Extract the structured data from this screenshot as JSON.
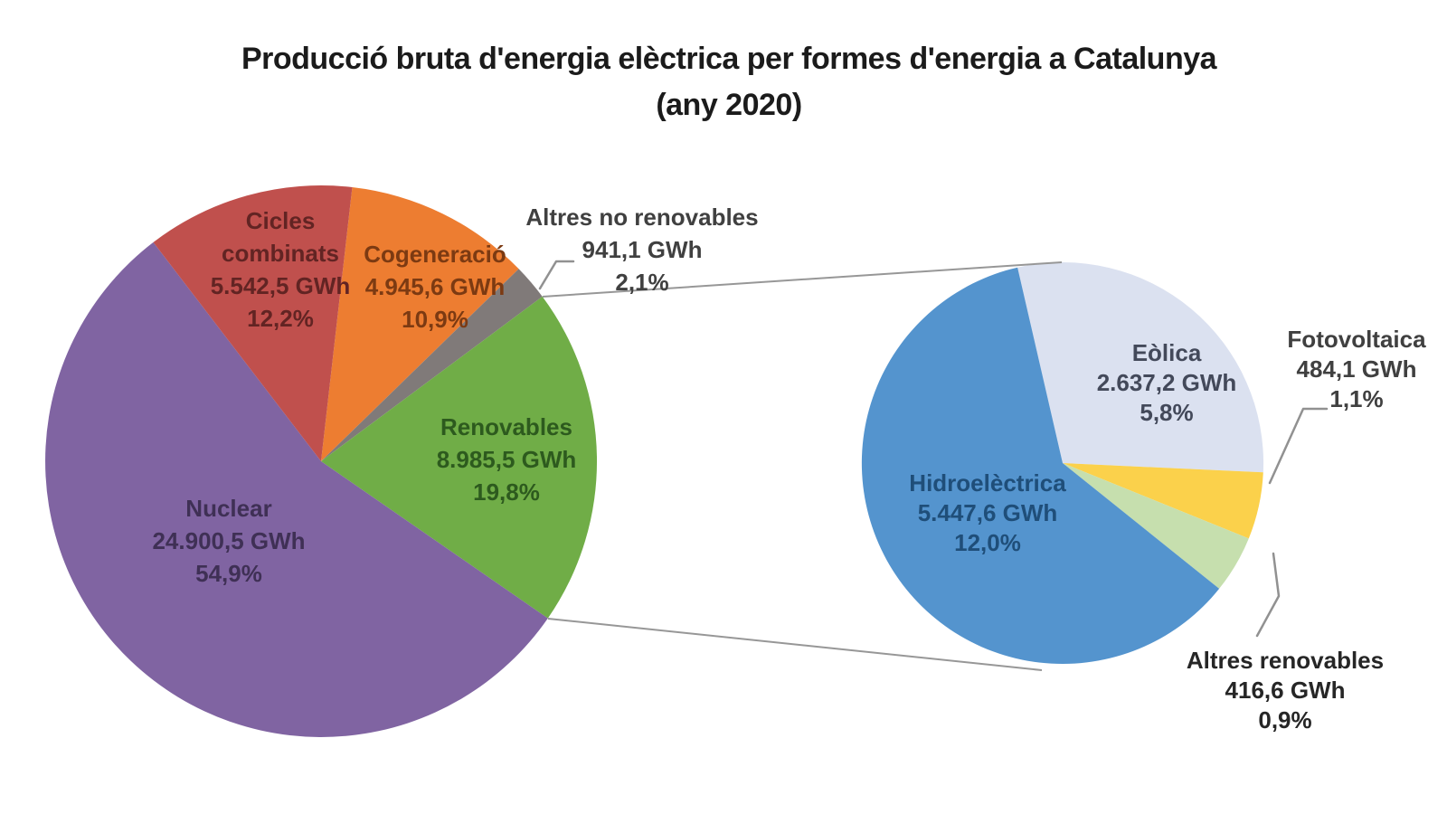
{
  "chart_data": {
    "type": "pie",
    "subtype": "pie-of-pie",
    "unit": "GWh",
    "title": "Producció bruta d'energia elèctrica per formes d'energia a Catalunya (any 2020)",
    "title_line1": "Producció bruta d'energia elèctrica per formes d'energia a Catalunya",
    "title_line2": "(any 2020)",
    "main_pie": {
      "slices": [
        {
          "id": "cogeneracio",
          "name": "Cogeneració",
          "gwh": 4945.6,
          "gwh_label": "4.945,6 GWh",
          "pct_label": "10,9%",
          "value": 10.9,
          "color": "#ED7D31",
          "label_color": "#7C3A12"
        },
        {
          "id": "altres-no-renovables",
          "name": "Altres no renovables",
          "gwh": 941.1,
          "gwh_label": "941,1 GWh",
          "pct_label": "2,1%",
          "value": 2.1,
          "color": "#807A79",
          "label_color": "#404040"
        },
        {
          "id": "renovables",
          "name": "Renovables",
          "gwh": 8985.5,
          "gwh_label": "8.985,5 GWh",
          "pct_label": "19,8%",
          "value": 19.8,
          "color": "#70AD47",
          "label_color": "#2D5A1E"
        },
        {
          "id": "nuclear",
          "name": "Nuclear",
          "gwh": 24900.5,
          "gwh_label": "24.900,5 GWh",
          "pct_label": "54,9%",
          "value": 54.9,
          "color": "#8064A2",
          "label_color": "#3F3055"
        },
        {
          "id": "cicles-combinats",
          "name": "Cicles combinats",
          "gwh": 5542.5,
          "gwh_label": "5.542,5 GWh",
          "pct_label": "12,2%",
          "value": 12.2,
          "color": "#C0504D",
          "label_color": "#622423"
        }
      ]
    },
    "secondary_pie": {
      "group_of": "Renovables",
      "slices": [
        {
          "id": "eolica",
          "name": "Eòlica",
          "gwh": 2637.2,
          "gwh_label": "2.637,2 GWh",
          "pct_label": "5,8%",
          "value": 2637.2,
          "color": "#DBE1F0",
          "label_color": "#43495A"
        },
        {
          "id": "fotovoltaica",
          "name": "Fotovoltaica",
          "gwh": 484.1,
          "gwh_label": "484,1 GWh",
          "pct_label": "1,1%",
          "value": 484.1,
          "color": "#FBD14B",
          "label_color": "#404040"
        },
        {
          "id": "altres-renovables",
          "name": "Altres renovables",
          "gwh": 416.6,
          "gwh_label": "416,6 GWh",
          "pct_label": "0,9%",
          "value": 416.6,
          "color": "#C6DFAE",
          "label_color": "#262626"
        },
        {
          "id": "hidroelectrica",
          "name": "Hidroelèctrica",
          "gwh": 5447.6,
          "gwh_label": "5.447,6 GWh",
          "pct_label": "12,0%",
          "value": 5447.6,
          "color": "#5494CE",
          "label_color": "#1F4E79"
        }
      ]
    }
  }
}
